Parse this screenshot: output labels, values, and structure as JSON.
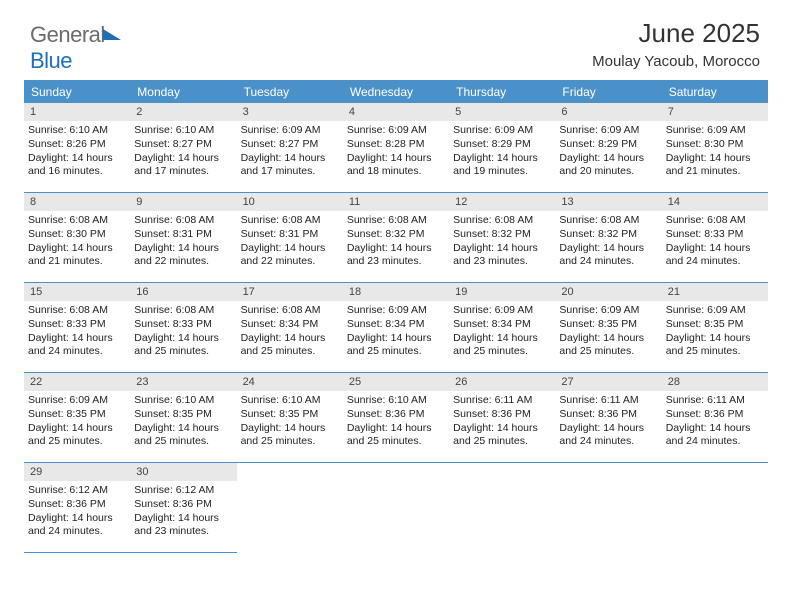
{
  "logo": {
    "part1": "General",
    "part2": "Blue"
  },
  "title": {
    "month": "June 2025",
    "location": "Moulay Yacoub, Morocco"
  },
  "weekdays": [
    "Sunday",
    "Monday",
    "Tuesday",
    "Wednesday",
    "Thursday",
    "Friday",
    "Saturday"
  ],
  "colors": {
    "header_bg": "#4a90c9",
    "header_text": "#ffffff",
    "daynum_bg": "#e8e8e8",
    "border": "#4a90c9",
    "logo_gray": "#6b6b6b",
    "logo_blue": "#1d6fb8"
  },
  "cells": [
    {
      "day": "1",
      "sunrise": "6:10 AM",
      "sunset": "8:26 PM",
      "daylight": "14 hours and 16 minutes."
    },
    {
      "day": "2",
      "sunrise": "6:10 AM",
      "sunset": "8:27 PM",
      "daylight": "14 hours and 17 minutes."
    },
    {
      "day": "3",
      "sunrise": "6:09 AM",
      "sunset": "8:27 PM",
      "daylight": "14 hours and 17 minutes."
    },
    {
      "day": "4",
      "sunrise": "6:09 AM",
      "sunset": "8:28 PM",
      "daylight": "14 hours and 18 minutes."
    },
    {
      "day": "5",
      "sunrise": "6:09 AM",
      "sunset": "8:29 PM",
      "daylight": "14 hours and 19 minutes."
    },
    {
      "day": "6",
      "sunrise": "6:09 AM",
      "sunset": "8:29 PM",
      "daylight": "14 hours and 20 minutes."
    },
    {
      "day": "7",
      "sunrise": "6:09 AM",
      "sunset": "8:30 PM",
      "daylight": "14 hours and 21 minutes."
    },
    {
      "day": "8",
      "sunrise": "6:08 AM",
      "sunset": "8:30 PM",
      "daylight": "14 hours and 21 minutes."
    },
    {
      "day": "9",
      "sunrise": "6:08 AM",
      "sunset": "8:31 PM",
      "daylight": "14 hours and 22 minutes."
    },
    {
      "day": "10",
      "sunrise": "6:08 AM",
      "sunset": "8:31 PM",
      "daylight": "14 hours and 22 minutes."
    },
    {
      "day": "11",
      "sunrise": "6:08 AM",
      "sunset": "8:32 PM",
      "daylight": "14 hours and 23 minutes."
    },
    {
      "day": "12",
      "sunrise": "6:08 AM",
      "sunset": "8:32 PM",
      "daylight": "14 hours and 23 minutes."
    },
    {
      "day": "13",
      "sunrise": "6:08 AM",
      "sunset": "8:32 PM",
      "daylight": "14 hours and 24 minutes."
    },
    {
      "day": "14",
      "sunrise": "6:08 AM",
      "sunset": "8:33 PM",
      "daylight": "14 hours and 24 minutes."
    },
    {
      "day": "15",
      "sunrise": "6:08 AM",
      "sunset": "8:33 PM",
      "daylight": "14 hours and 24 minutes."
    },
    {
      "day": "16",
      "sunrise": "6:08 AM",
      "sunset": "8:33 PM",
      "daylight": "14 hours and 25 minutes."
    },
    {
      "day": "17",
      "sunrise": "6:08 AM",
      "sunset": "8:34 PM",
      "daylight": "14 hours and 25 minutes."
    },
    {
      "day": "18",
      "sunrise": "6:09 AM",
      "sunset": "8:34 PM",
      "daylight": "14 hours and 25 minutes."
    },
    {
      "day": "19",
      "sunrise": "6:09 AM",
      "sunset": "8:34 PM",
      "daylight": "14 hours and 25 minutes."
    },
    {
      "day": "20",
      "sunrise": "6:09 AM",
      "sunset": "8:35 PM",
      "daylight": "14 hours and 25 minutes."
    },
    {
      "day": "21",
      "sunrise": "6:09 AM",
      "sunset": "8:35 PM",
      "daylight": "14 hours and 25 minutes."
    },
    {
      "day": "22",
      "sunrise": "6:09 AM",
      "sunset": "8:35 PM",
      "daylight": "14 hours and 25 minutes."
    },
    {
      "day": "23",
      "sunrise": "6:10 AM",
      "sunset": "8:35 PM",
      "daylight": "14 hours and 25 minutes."
    },
    {
      "day": "24",
      "sunrise": "6:10 AM",
      "sunset": "8:35 PM",
      "daylight": "14 hours and 25 minutes."
    },
    {
      "day": "25",
      "sunrise": "6:10 AM",
      "sunset": "8:36 PM",
      "daylight": "14 hours and 25 minutes."
    },
    {
      "day": "26",
      "sunrise": "6:11 AM",
      "sunset": "8:36 PM",
      "daylight": "14 hours and 25 minutes."
    },
    {
      "day": "27",
      "sunrise": "6:11 AM",
      "sunset": "8:36 PM",
      "daylight": "14 hours and 24 minutes."
    },
    {
      "day": "28",
      "sunrise": "6:11 AM",
      "sunset": "8:36 PM",
      "daylight": "14 hours and 24 minutes."
    },
    {
      "day": "29",
      "sunrise": "6:12 AM",
      "sunset": "8:36 PM",
      "daylight": "14 hours and 24 minutes."
    },
    {
      "day": "30",
      "sunrise": "6:12 AM",
      "sunset": "8:36 PM",
      "daylight": "14 hours and 23 minutes."
    }
  ],
  "labels": {
    "sunrise": "Sunrise:",
    "sunset": "Sunset:",
    "daylight": "Daylight:"
  }
}
